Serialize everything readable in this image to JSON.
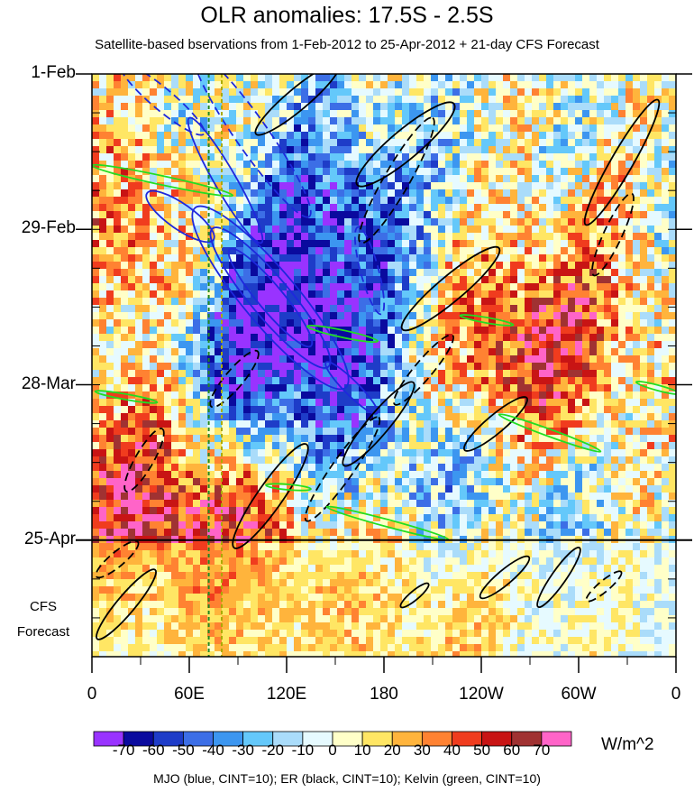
{
  "chart_data": {
    "type": "heatmap",
    "title": "OLR anomalies: 17.5S - 2.5S",
    "subtitle": "Satellite-based bservations from 1-Feb-2012 to 25-Apr-2012 + 21-day CFS Forecast",
    "x_ticks": [
      "0",
      "60E",
      "120E",
      "180",
      "120W",
      "60W",
      "0"
    ],
    "x_tick_lon": [
      0,
      60,
      120,
      180,
      240,
      300,
      360
    ],
    "y_ticks": [
      "1-Feb",
      "29-Feb",
      "28-Mar",
      "25-Apr"
    ],
    "y_tick_day": [
      0,
      28,
      56,
      84
    ],
    "forecast_label": [
      "CFS",
      "Forecast"
    ],
    "forecast_start_day": 84,
    "forecast_end_day": 105,
    "colorbar": {
      "levels": [
        -70,
        -60,
        -50,
        -40,
        -30,
        -20,
        -10,
        0,
        10,
        20,
        30,
        40,
        50,
        60,
        70
      ],
      "labels": [
        "-70",
        "-60",
        "-50",
        "-40",
        "-30",
        "-20",
        "-10",
        "0",
        "10",
        "20",
        "30",
        "40",
        "50",
        "60",
        "70"
      ],
      "colors": [
        "#9933ff",
        "#0a0a9e",
        "#1e3cc8",
        "#3c6ee6",
        "#3c96f0",
        "#64c8fa",
        "#aadcfa",
        "#e6faff",
        "#ffffc8",
        "#ffe664",
        "#ffb43c",
        "#ff8232",
        "#f03c1e",
        "#c81414",
        "#a03232",
        "#ff64c8"
      ],
      "units": "W/m^2"
    },
    "reference_lon": [
      72,
      80
    ],
    "contour_legend": "MJO (blue, CINT=10); ER (black, CINT=10); Kelvin (green, CINT=10)"
  }
}
